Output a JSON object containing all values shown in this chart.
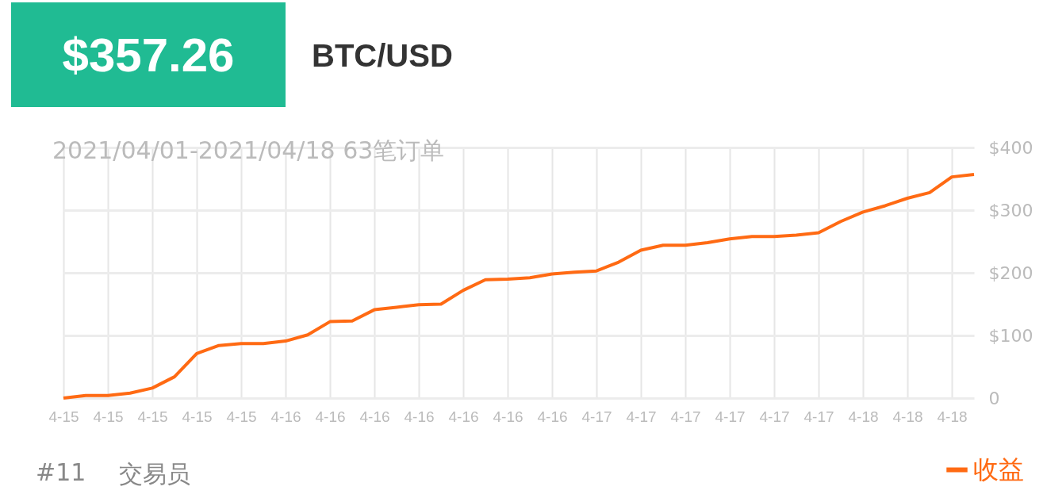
{
  "chart_data": {
    "type": "line",
    "title": "$357.26",
    "subtitle": "BTC/USD",
    "annotations": [
      "2021/04/01-2021/04/18 63笔订单",
      "#11",
      "交易员"
    ],
    "categories": [
      "4-15",
      null,
      "4-15",
      null,
      "4-15",
      null,
      "4-15",
      null,
      "4-15",
      null,
      "4-16",
      null,
      "4-16",
      null,
      "4-16",
      null,
      "4-16",
      null,
      "4-16",
      null,
      "4-16",
      null,
      "4-16",
      null,
      "4-17",
      null,
      "4-17",
      null,
      "4-17",
      null,
      "4-17",
      null,
      "4-17",
      null,
      "4-17",
      null,
      "4-18",
      null,
      "4-18",
      null,
      "4-18",
      null
    ],
    "series": [
      {
        "name": "收益",
        "color": "#ff6a13",
        "values": [
          0,
          4,
          4,
          8,
          16,
          34,
          71,
          84,
          87,
          87,
          91,
          101,
          122,
          123,
          141,
          145,
          149,
          150,
          172,
          189,
          190,
          192,
          198,
          201,
          203,
          217,
          236,
          244,
          244,
          248,
          254,
          258,
          258,
          260,
          264,
          282,
          297,
          307,
          319,
          328,
          353,
          357
        ]
      }
    ],
    "ylim": [
      0,
      400
    ],
    "yticks": [
      0,
      {
        "value": 100,
        "label": "$100"
      },
      {
        "value": 200,
        "label": "$200"
      },
      {
        "value": 300,
        "label": "$300"
      },
      {
        "value": 400,
        "label": "$400"
      }
    ],
    "grid": true,
    "legend": "bottom right",
    "marker": "none",
    "line_style": "solid"
  }
}
